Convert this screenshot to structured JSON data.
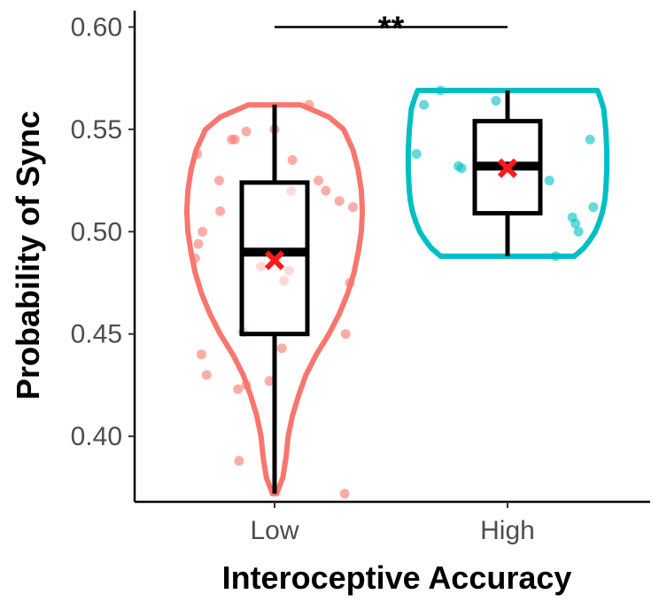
{
  "chart_data": {
    "type": "violin-box",
    "title": "",
    "xlabel": "Interoceptive Accuracy",
    "ylabel": "Probability of Sync",
    "ylim": [
      0.368,
      0.608
    ],
    "yticks": [
      0.4,
      0.45,
      0.5,
      0.55,
      0.6
    ],
    "ytick_labels": [
      "0.40",
      "0.45",
      "0.50",
      "0.55",
      "0.60"
    ],
    "categories": [
      "Low",
      "High"
    ],
    "grid": false,
    "legend": "none",
    "significance": {
      "label": "**",
      "between": [
        "Low",
        "High"
      ],
      "y": 0.6
    },
    "groups": [
      {
        "category": "Low",
        "color": "#F8766D",
        "box": {
          "q1": 0.45,
          "median": 0.49,
          "q3": 0.524,
          "whisker_low": 0.372,
          "whisker_high": 0.562
        },
        "mean": 0.486,
        "violin": {
          "y": [
            0.372,
            0.38,
            0.39,
            0.4,
            0.41,
            0.42,
            0.43,
            0.44,
            0.45,
            0.46,
            0.47,
            0.48,
            0.49,
            0.5,
            0.51,
            0.52,
            0.53,
            0.54,
            0.55,
            0.556,
            0.562
          ],
          "width": [
            0.02,
            0.08,
            0.11,
            0.13,
            0.17,
            0.23,
            0.3,
            0.4,
            0.52,
            0.62,
            0.7,
            0.76,
            0.8,
            0.83,
            0.84,
            0.83,
            0.8,
            0.75,
            0.66,
            0.52,
            0.25
          ]
        },
        "points": [
          {
            "y": 0.562,
            "dx": 0.33
          },
          {
            "y": 0.55,
            "dx": 0.0
          },
          {
            "y": 0.549,
            "dx": -0.27
          },
          {
            "y": 0.545,
            "dx": -0.38
          },
          {
            "y": 0.545,
            "dx": -0.41
          },
          {
            "y": 0.538,
            "dx": -0.74
          },
          {
            "y": 0.535,
            "dx": 0.17
          },
          {
            "y": 0.525,
            "dx": -0.53
          },
          {
            "y": 0.525,
            "dx": 0.42
          },
          {
            "y": 0.52,
            "dx": 0.16
          },
          {
            "y": 0.52,
            "dx": 0.49
          },
          {
            "y": 0.515,
            "dx": 0.62
          },
          {
            "y": 0.512,
            "dx": 0.75
          },
          {
            "y": 0.51,
            "dx": -0.52
          },
          {
            "y": 0.5,
            "dx": -0.69
          },
          {
            "y": 0.494,
            "dx": -0.73
          },
          {
            "y": 0.487,
            "dx": -0.76
          },
          {
            "y": 0.483,
            "dx": -0.13
          },
          {
            "y": 0.481,
            "dx": 0.14
          },
          {
            "y": 0.476,
            "dx": 0.09
          },
          {
            "y": 0.475,
            "dx": 0.72
          },
          {
            "y": 0.451,
            "dx": -0.3
          },
          {
            "y": 0.45,
            "dx": 0.68
          },
          {
            "y": 0.443,
            "dx": 0.07
          },
          {
            "y": 0.44,
            "dx": -0.7
          },
          {
            "y": 0.43,
            "dx": -0.65
          },
          {
            "y": 0.425,
            "dx": -0.27
          },
          {
            "y": 0.423,
            "dx": -0.35
          },
          {
            "y": 0.427,
            "dx": -0.05
          },
          {
            "y": 0.388,
            "dx": -0.34
          },
          {
            "y": 0.372,
            "dx": 0.67
          }
        ]
      },
      {
        "category": "High",
        "color": "#00BFC4",
        "box": {
          "q1": 0.509,
          "median": 0.532,
          "q3": 0.554,
          "whisker_low": 0.488,
          "whisker_high": 0.569
        },
        "mean": 0.531,
        "violin": {
          "y": [
            0.488,
            0.492,
            0.496,
            0.5,
            0.505,
            0.51,
            0.515,
            0.52,
            0.53,
            0.54,
            0.55,
            0.555,
            0.56,
            0.565,
            0.569
          ],
          "width": [
            0.64,
            0.73,
            0.79,
            0.84,
            0.88,
            0.91,
            0.93,
            0.94,
            0.95,
            0.95,
            0.94,
            0.93,
            0.92,
            0.89,
            0.86
          ]
        },
        "points": [
          {
            "y": 0.569,
            "dx": -0.64
          },
          {
            "y": 0.564,
            "dx": -0.11
          },
          {
            "y": 0.562,
            "dx": -0.8
          },
          {
            "y": 0.545,
            "dx": 0.79
          },
          {
            "y": 0.538,
            "dx": -0.87
          },
          {
            "y": 0.532,
            "dx": -0.47
          },
          {
            "y": 0.531,
            "dx": -0.44
          },
          {
            "y": 0.525,
            "dx": 0.4
          },
          {
            "y": 0.512,
            "dx": 0.82
          },
          {
            "y": 0.507,
            "dx": 0.62
          },
          {
            "y": 0.504,
            "dx": 0.65
          },
          {
            "y": 0.5,
            "dx": 0.68
          },
          {
            "y": 0.488,
            "dx": 0.46
          }
        ]
      }
    ]
  }
}
